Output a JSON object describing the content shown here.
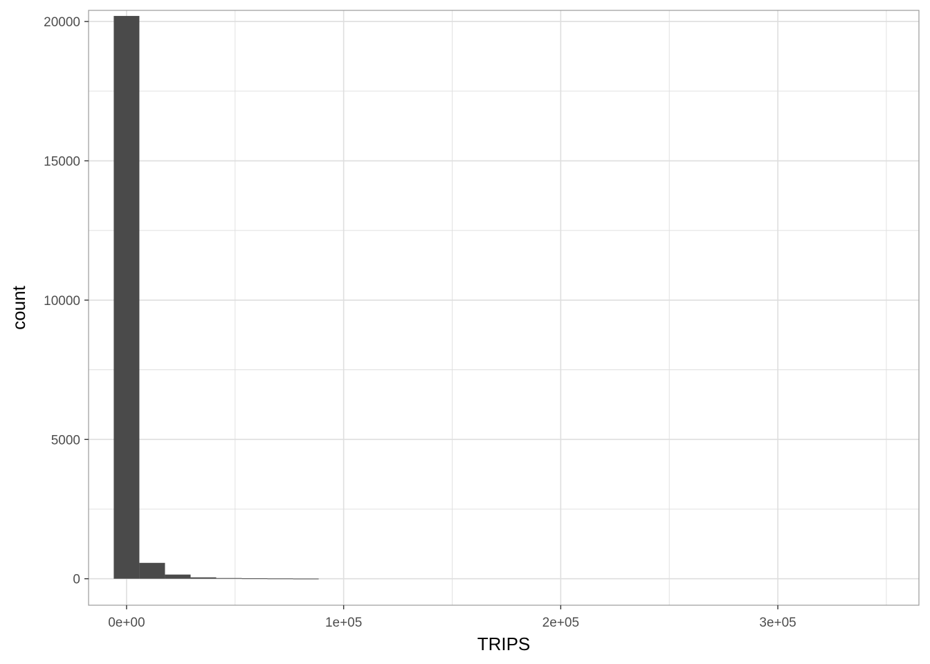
{
  "chart_data": {
    "type": "bar",
    "title": "",
    "xlabel": "TRIPS",
    "ylabel": "count",
    "xlim": [
      -17500,
      365000
    ],
    "ylim": [
      -950,
      20400
    ],
    "x_ticks": [
      {
        "value": 0,
        "label": "0e+00"
      },
      {
        "value": 100000,
        "label": "1e+05"
      },
      {
        "value": 200000,
        "label": "2e+05"
      },
      {
        "value": 300000,
        "label": "3e+05"
      }
    ],
    "x_minor_gridlines": [
      50000,
      150000,
      250000,
      350000
    ],
    "y_ticks": [
      {
        "value": 0,
        "label": "0"
      },
      {
        "value": 5000,
        "label": "5000"
      },
      {
        "value": 10000,
        "label": "10000"
      },
      {
        "value": 15000,
        "label": "15000"
      },
      {
        "value": 20000,
        "label": "20000"
      }
    ],
    "y_minor_gridlines": [
      2500,
      7500,
      12500,
      17500
    ],
    "bin_width": 11800,
    "bins": [
      {
        "center": 0,
        "count": 20200
      },
      {
        "center": 11800,
        "count": 570
      },
      {
        "center": 23600,
        "count": 150
      },
      {
        "center": 35400,
        "count": 50
      },
      {
        "center": 47200,
        "count": 25
      },
      {
        "center": 59000,
        "count": 15
      },
      {
        "center": 70800,
        "count": 10
      },
      {
        "center": 82600,
        "count": 5
      }
    ],
    "grid": true,
    "bar_color": "#4a4a4a",
    "grid_color": "#dedede",
    "panel_border_color": "#999999"
  }
}
